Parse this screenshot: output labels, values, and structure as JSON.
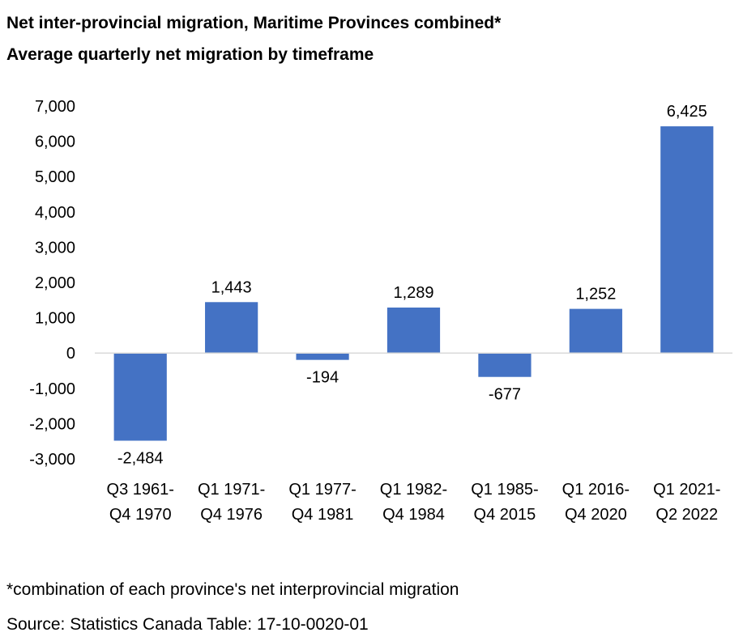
{
  "header": {
    "title": "Net inter-provincial migration, Maritime Provinces combined*",
    "subtitle": "Average quarterly net migration by timeframe"
  },
  "chart_data": {
    "type": "bar",
    "title": "Net inter-provincial migration, Maritime Provinces combined*",
    "subtitle": "Average quarterly net migration by timeframe",
    "categories": [
      [
        "Q3 1961-",
        "Q4 1970"
      ],
      [
        "Q1 1971-",
        "Q4 1976"
      ],
      [
        "Q1 1977-",
        "Q4 1981"
      ],
      [
        "Q1 1982-",
        "Q4 1984"
      ],
      [
        "Q1 1985-",
        "Q4 2015"
      ],
      [
        "Q1 2016-",
        "Q4 2020"
      ],
      [
        "Q1 2021-",
        "Q2 2022"
      ]
    ],
    "values": [
      -2484,
      1443,
      -194,
      1289,
      -677,
      1252,
      6425
    ],
    "data_labels": [
      "-2,484",
      "1,443",
      "-194",
      "1,289",
      "-677",
      "1,252",
      "6,425"
    ],
    "yticks": [
      7000,
      6000,
      5000,
      4000,
      3000,
      2000,
      1000,
      0,
      -1000,
      -2000,
      -3000
    ],
    "ytick_labels": [
      "7,000",
      "6,000",
      "5,000",
      "4,000",
      "3,000",
      "2,000",
      "1,000",
      "0",
      "-1,000",
      "-2,000",
      "-3,000"
    ],
    "ylim": [
      -3000,
      7000
    ],
    "bar_color": "#4472C4",
    "axis_color": "#D9D9D9",
    "grid": false,
    "legend": "none",
    "xlabel": "",
    "ylabel": ""
  },
  "footer": {
    "footnote": "*combination of each province's net interprovincial migration",
    "source": "Source: Statistics Canada Table: 17-10-0020-01"
  }
}
